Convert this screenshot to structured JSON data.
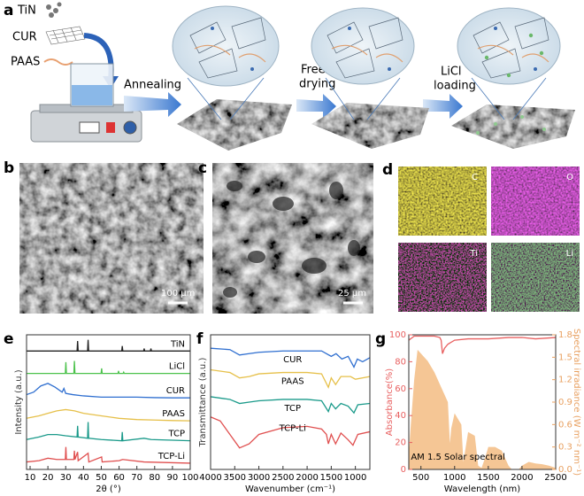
{
  "figure": {
    "labels": [
      "a",
      "b",
      "c",
      "d",
      "e",
      "f",
      "g"
    ],
    "schematic": {
      "materials": [
        "TiN",
        "CUR",
        "PAAS"
      ],
      "steps": [
        [
          "Annealing"
        ],
        [
          "Freeze",
          "drying"
        ],
        [
          "LiCl",
          "loading"
        ]
      ]
    },
    "sem": [
      {
        "scale_bar": "100 μm"
      },
      {
        "scale_bar": "25 μm"
      }
    ],
    "eds_maps": [
      "C",
      "O",
      "Ti",
      "Li"
    ]
  },
  "chart_data": [
    {
      "type": "line",
      "xlabel": "2θ (°)",
      "ylabel": "Intensity (a.u.)",
      "legend": "inline",
      "xlim": [
        8,
        100
      ],
      "xticks": [
        10,
        20,
        30,
        40,
        50,
        60,
        70,
        80,
        90,
        100
      ],
      "ylim": [
        0.8,
        6.2
      ],
      "series": [
        {
          "name": "TiN",
          "color": "#222222",
          "x": [
            8,
            36.4,
            36.7,
            37,
            42.3,
            42.6,
            42.9,
            61.5,
            61.8,
            62.1,
            73.8,
            74.1,
            74.4,
            77.6,
            77.9,
            78.2,
            100
          ],
          "values": [
            5.55,
            5.55,
            5.95,
            5.55,
            5.55,
            6.0,
            5.55,
            5.55,
            5.75,
            5.55,
            5.55,
            5.65,
            5.55,
            5.55,
            5.65,
            5.55,
            5.55
          ]
        },
        {
          "name": "LiCl",
          "color": "#4cc24c",
          "x": [
            8,
            29.8,
            30.1,
            30.4,
            34.6,
            34.9,
            35.2,
            49.9,
            50.2,
            50.5,
            59.4,
            59.7,
            60,
            62.3,
            62.6,
            62.9,
            100
          ],
          "values": [
            4.65,
            4.65,
            5.1,
            4.65,
            4.65,
            5.15,
            4.65,
            4.65,
            4.85,
            4.65,
            4.65,
            4.75,
            4.65,
            4.65,
            4.7,
            4.65,
            4.65
          ]
        },
        {
          "name": "CUR",
          "color": "#2f6fd0",
          "x": [
            8,
            12,
            16,
            20,
            24,
            28,
            29,
            30,
            34,
            40,
            50,
            60,
            70,
            80,
            90,
            100
          ],
          "values": [
            3.8,
            3.9,
            4.15,
            4.25,
            4.1,
            3.9,
            4.05,
            3.85,
            3.8,
            3.75,
            3.7,
            3.7,
            3.7,
            3.68,
            3.67,
            3.67
          ]
        },
        {
          "name": "PAAS",
          "color": "#e6c04a",
          "x": [
            8,
            15,
            20,
            25,
            30,
            35,
            40,
            50,
            60,
            70,
            80,
            90,
            100
          ],
          "values": [
            2.85,
            2.95,
            3.05,
            3.15,
            3.2,
            3.15,
            3.05,
            2.95,
            2.85,
            2.8,
            2.78,
            2.76,
            2.75
          ]
        },
        {
          "name": "TCP",
          "color": "#1a9a8a",
          "x": [
            8,
            15,
            20,
            25,
            30,
            36.4,
            36.7,
            37,
            42.3,
            42.6,
            42.9,
            50,
            61.5,
            61.8,
            62.1,
            74,
            78,
            100
          ],
          "values": [
            2.0,
            2.1,
            2.2,
            2.2,
            2.15,
            2.1,
            2.55,
            2.1,
            2.05,
            2.7,
            2.05,
            2.0,
            1.95,
            2.3,
            1.95,
            2.05,
            2.0,
            1.95
          ]
        },
        {
          "name": "TCP-Li",
          "color": "#e05050",
          "x": [
            8,
            15,
            20,
            25,
            29.8,
            30.1,
            30.4,
            34.6,
            34.9,
            35.2,
            36.7,
            37,
            42.6,
            43,
            50.2,
            50.5,
            60,
            62,
            74,
            100
          ],
          "values": [
            1.1,
            1.15,
            1.25,
            1.2,
            1.2,
            1.7,
            1.2,
            1.2,
            1.55,
            1.2,
            1.5,
            1.15,
            1.45,
            1.1,
            1.3,
            1.1,
            1.15,
            1.2,
            1.1,
            1.05
          ]
        }
      ]
    },
    {
      "type": "line",
      "xlabel": "Wavenumber (cm⁻¹)",
      "ylabel": "Transmittance (a.u.)",
      "legend": "inline",
      "xlim": [
        4000,
        700
      ],
      "xticks": [
        4000,
        3500,
        3000,
        2500,
        2000,
        1500,
        1000
      ],
      "ylim": [
        0,
        10
      ],
      "series": [
        {
          "name": "CUR",
          "color": "#2f6fd0",
          "x": [
            4000,
            3600,
            3400,
            3200,
            3000,
            2500,
            2000,
            1700,
            1600,
            1500,
            1400,
            1280,
            1150,
            1030,
            960,
            850,
            700
          ],
          "values": [
            9.0,
            8.9,
            8.5,
            8.6,
            8.7,
            8.8,
            8.8,
            8.8,
            8.6,
            8.4,
            8.6,
            8.2,
            8.4,
            7.6,
            8.2,
            8.0,
            8.3
          ]
        },
        {
          "name": "PAAS",
          "color": "#e6c04a",
          "x": [
            4000,
            3600,
            3400,
            3200,
            3000,
            2500,
            2000,
            1700,
            1560,
            1500,
            1410,
            1300,
            1100,
            1000,
            700
          ],
          "values": [
            7.4,
            7.2,
            6.8,
            6.9,
            7.1,
            7.2,
            7.2,
            7.1,
            6.1,
            6.8,
            6.3,
            6.9,
            6.9,
            6.7,
            6.9
          ]
        },
        {
          "name": "TCP",
          "color": "#1a9a8a",
          "x": [
            4000,
            3600,
            3400,
            3200,
            3000,
            2500,
            2000,
            1700,
            1560,
            1500,
            1410,
            1300,
            1150,
            1030,
            950,
            700
          ],
          "values": [
            5.4,
            5.2,
            4.9,
            5.0,
            5.1,
            5.2,
            5.2,
            5.1,
            4.3,
            4.9,
            4.5,
            4.9,
            4.7,
            4.2,
            4.8,
            4.9
          ]
        },
        {
          "name": "TCP-Li",
          "color": "#e05050",
          "x": [
            4000,
            3800,
            3600,
            3400,
            3200,
            3000,
            2500,
            2000,
            1700,
            1600,
            1560,
            1500,
            1410,
            1300,
            1150,
            1050,
            950,
            700
          ],
          "values": [
            3.9,
            3.6,
            2.6,
            1.6,
            1.9,
            2.6,
            3.1,
            3.2,
            3.0,
            2.6,
            1.9,
            2.6,
            1.9,
            2.7,
            2.2,
            1.8,
            2.6,
            2.8
          ]
        }
      ]
    },
    {
      "type": "line",
      "xlabel": "Wavelength (nm)",
      "ylabel": "Absorbance(%)",
      "y2label": "Spectral irradiance (W m⁻² nm⁻¹)",
      "annotation": "AM 1.5 Solar spectral",
      "xlim": [
        320,
        2500
      ],
      "xticks": [
        500,
        1000,
        1500,
        2000,
        2500
      ],
      "ylim": [
        0,
        100
      ],
      "yticks": [
        0,
        20,
        40,
        60,
        80,
        100
      ],
      "ycolor": "#e86060",
      "y2lim": [
        0,
        1.8
      ],
      "y2ticks": [
        {
          "value": 0,
          "label": "0.0"
        },
        0.3,
        0.6,
        0.9,
        1.2,
        1.5,
        1.8
      ],
      "y2color": "#e8a060",
      "series": [
        {
          "color": "#f4c08a",
          "axis": "y2",
          "kind": "area",
          "x": [
            320,
            350,
            400,
            450,
            500,
            550,
            600,
            700,
            800,
            900,
            930,
            950,
            1000,
            1100,
            1130,
            1200,
            1300,
            1350,
            1400,
            1450,
            1500,
            1600,
            1700,
            1800,
            1850,
            1950,
            2000,
            2100,
            2200,
            2300,
            2400,
            2500
          ],
          "values": [
            0.2,
            0.6,
            1.2,
            1.6,
            1.55,
            1.5,
            1.45,
            1.3,
            1.1,
            0.9,
            0.35,
            0.55,
            0.75,
            0.6,
            0.1,
            0.5,
            0.45,
            0.05,
            0.02,
            0.15,
            0.3,
            0.3,
            0.25,
            0.05,
            0,
            0,
            0.05,
            0.1,
            0.08,
            0.07,
            0.05,
            0.02
          ]
        },
        {
          "color": "#e86060",
          "x": [
            320,
            400,
            500,
            600,
            700,
            780,
            800,
            820,
            850,
            900,
            1000,
            1200,
            1500,
            1800,
            2000,
            2200,
            2500
          ],
          "values": [
            96,
            99,
            99,
            99,
            99,
            98,
            96,
            86,
            90,
            93,
            96,
            97,
            97,
            98,
            98,
            97,
            98
          ]
        }
      ]
    }
  ]
}
